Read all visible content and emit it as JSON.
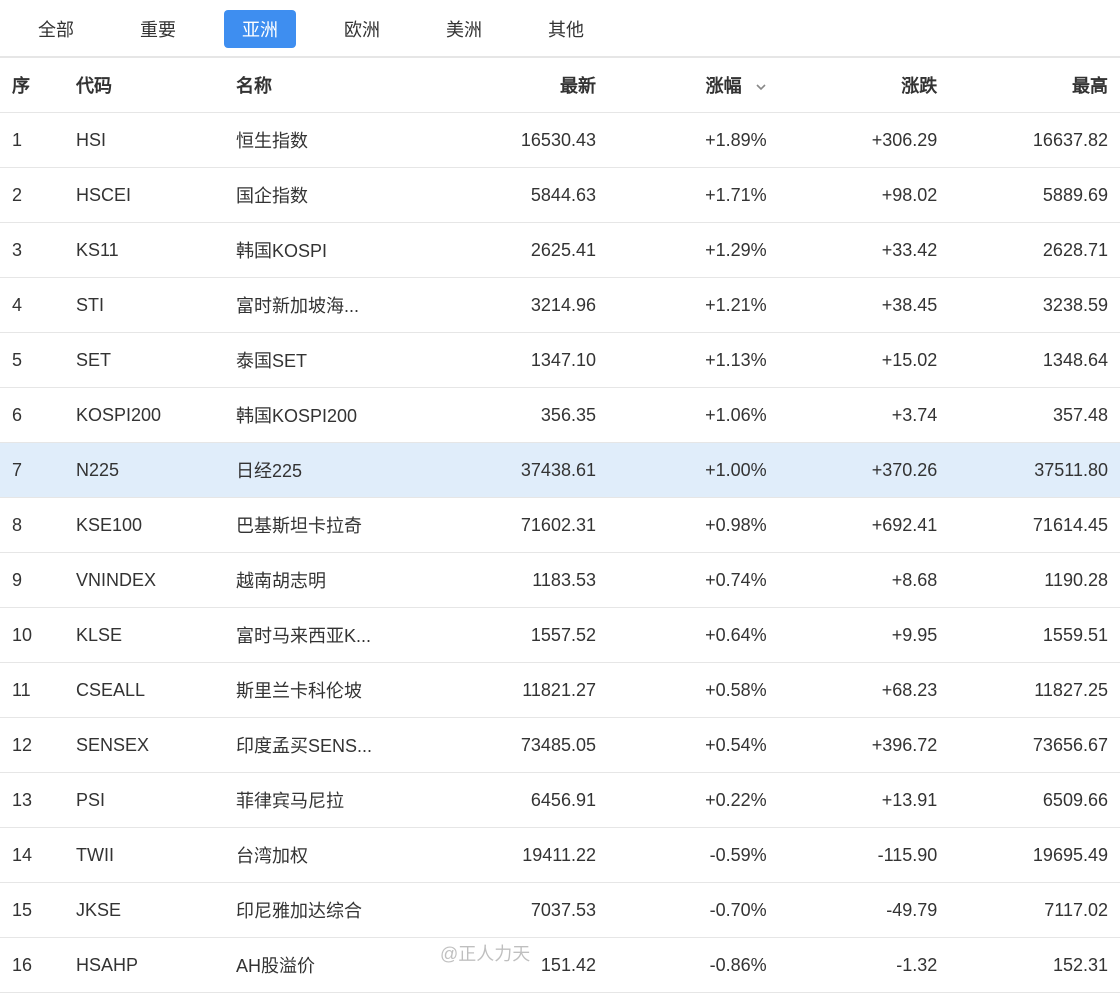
{
  "colors": {
    "up": "#e23c3c",
    "down": "#2aa757",
    "tab_active_bg": "#3e8ef0",
    "border": "#e6e6e6",
    "highlight_row_bg": "#e0edfa"
  },
  "tabs": [
    {
      "label": "全部",
      "active": false
    },
    {
      "label": "重要",
      "active": false
    },
    {
      "label": "亚洲",
      "active": true
    },
    {
      "label": "欧洲",
      "active": false
    },
    {
      "label": "美洲",
      "active": false
    },
    {
      "label": "其他",
      "active": false
    }
  ],
  "columns": {
    "seq": "序",
    "code": "代码",
    "name": "名称",
    "latest": "最新",
    "change_pct": "涨幅",
    "change": "涨跌",
    "high": "最高"
  },
  "sort": {
    "column": "change_pct",
    "direction": "desc"
  },
  "highlight_row_index": 6,
  "rows": [
    {
      "seq": "1",
      "code": "HSI",
      "name": "恒生指数",
      "latest": "16530.43",
      "pct": "+1.89%",
      "chg": "+306.29",
      "high": "16637.82",
      "dir": "up"
    },
    {
      "seq": "2",
      "code": "HSCEI",
      "name": "国企指数",
      "latest": "5844.63",
      "pct": "+1.71%",
      "chg": "+98.02",
      "high": "5889.69",
      "dir": "up"
    },
    {
      "seq": "3",
      "code": "KS11",
      "name": "韩国KOSPI",
      "latest": "2625.41",
      "pct": "+1.29%",
      "chg": "+33.42",
      "high": "2628.71",
      "dir": "up"
    },
    {
      "seq": "4",
      "code": "STI",
      "name": "富时新加坡海...",
      "latest": "3214.96",
      "pct": "+1.21%",
      "chg": "+38.45",
      "high": "3238.59",
      "dir": "up"
    },
    {
      "seq": "5",
      "code": "SET",
      "name": "泰国SET",
      "latest": "1347.10",
      "pct": "+1.13%",
      "chg": "+15.02",
      "high": "1348.64",
      "dir": "up"
    },
    {
      "seq": "6",
      "code": "KOSPI200",
      "name": "韩国KOSPI200",
      "latest": "356.35",
      "pct": "+1.06%",
      "chg": "+3.74",
      "high": "357.48",
      "dir": "up"
    },
    {
      "seq": "7",
      "code": "N225",
      "name": "日经225",
      "latest": "37438.61",
      "pct": "+1.00%",
      "chg": "+370.26",
      "high": "37511.80",
      "dir": "up"
    },
    {
      "seq": "8",
      "code": "KSE100",
      "name": "巴基斯坦卡拉奇",
      "latest": "71602.31",
      "pct": "+0.98%",
      "chg": "+692.41",
      "high": "71614.45",
      "dir": "up"
    },
    {
      "seq": "9",
      "code": "VNINDEX",
      "name": "越南胡志明",
      "latest": "1183.53",
      "pct": "+0.74%",
      "chg": "+8.68",
      "high": "1190.28",
      "dir": "up"
    },
    {
      "seq": "10",
      "code": "KLSE",
      "name": "富时马来西亚K...",
      "latest": "1557.52",
      "pct": "+0.64%",
      "chg": "+9.95",
      "high": "1559.51",
      "dir": "up"
    },
    {
      "seq": "11",
      "code": "CSEALL",
      "name": "斯里兰卡科伦坡",
      "latest": "11821.27",
      "pct": "+0.58%",
      "chg": "+68.23",
      "high": "11827.25",
      "dir": "up"
    },
    {
      "seq": "12",
      "code": "SENSEX",
      "name": "印度孟买SENS...",
      "latest": "73485.05",
      "pct": "+0.54%",
      "chg": "+396.72",
      "high": "73656.67",
      "dir": "up"
    },
    {
      "seq": "13",
      "code": "PSI",
      "name": "菲律宾马尼拉",
      "latest": "6456.91",
      "pct": "+0.22%",
      "chg": "+13.91",
      "high": "6509.66",
      "dir": "up"
    },
    {
      "seq": "14",
      "code": "TWII",
      "name": "台湾加权",
      "latest": "19411.22",
      "pct": "-0.59%",
      "chg": "-115.90",
      "high": "19695.49",
      "dir": "down",
      "high_dir": "up"
    },
    {
      "seq": "15",
      "code": "JKSE",
      "name": "印尼雅加达综合",
      "latest": "7037.53",
      "pct": "-0.70%",
      "chg": "-49.79",
      "high": "7117.02",
      "dir": "down",
      "high_dir": "up"
    },
    {
      "seq": "16",
      "code": "HSAHP",
      "name": "AH股溢价",
      "latest": "151.42",
      "pct": "-0.86%",
      "chg": "-1.32",
      "high": "152.31",
      "dir": "down",
      "high_dir": "down"
    }
  ],
  "watermark": "@正人力天"
}
